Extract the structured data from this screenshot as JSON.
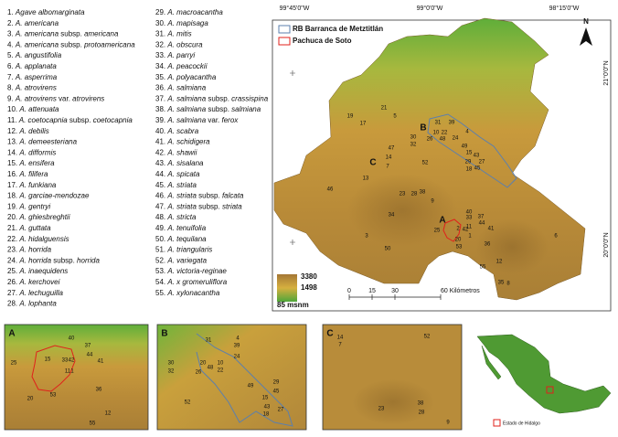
{
  "species": [
    "1. Agave albomarginata",
    "2. A. americana",
    "3. A. americana subsp. americana",
    "4. A. americana subsp. protoamericana",
    "5. A. angustifolia",
    "6. A. applanata",
    "7. A. asperrima",
    "8. A. atrovirens",
    "9. A. atrovirens var. atrovirens",
    "10. A. attenuata",
    "11. A. coetocapnia subsp. coetocapnia",
    "12. A. debilis",
    "13. A. demeesteriana",
    "14. A. difformis",
    "15. A. ensifera",
    "16. A. filifera",
    "17. A. funkiana",
    "18. A. garciae-mendozae",
    "19. A. gentryi",
    "20. A. ghiesbreghtii",
    "21. A. guttata",
    "22. A. hidalguensis",
    "23. A. horrida",
    "24. A. horrida subsp. horrida",
    "25. A. inaequidens",
    "26. A. kerchovei",
    "27. A. lechuguilla",
    "28. A. lophanta",
    "29. A. macroacantha",
    "30. A. mapisaga",
    "31. A. mitis",
    "32. A. obscura",
    "33. A. parryi",
    "34. A. peacockii",
    "35. A. polyacantha",
    "36. A. salmiana",
    "37. A. salmiana subsp. crassispina",
    "38. A. salmiana subsp. salmiana",
    "39. A. salmiana var. ferox",
    "40. A. scabra",
    "41. A. schidigera",
    "42. A. shawii",
    "43. A. sisalana",
    "44. A. spicata",
    "45. A. striata",
    "46. A. striata subsp. falcata",
    "47. A. striata subsp. striata",
    "48. A. stricta",
    "49. A. tenuifolia",
    "50. A. tequilana",
    "51. A. triangularis",
    "52. A. variegata",
    "53. A. victoria-reginae",
    "54. A. x gromeruliflora",
    "55. A. xylonacantha"
  ],
  "coordinates": {
    "top": [
      "99°45'0\"W",
      "99°0'0\"W",
      "98°15'0\"W"
    ],
    "right": [
      "21°0'0\"N",
      "20°0'0\"N"
    ]
  },
  "legend": {
    "items": [
      "RB Barranca de Metztitlán",
      "Pachuca de Soto"
    ],
    "elevation": [
      "3380",
      "1498",
      "85 msnm"
    ]
  },
  "scale": [
    "0",
    "15",
    "30",
    "60 Kilómetros"
  ],
  "map_labels": {
    "zones": [
      "B",
      "C",
      "A"
    ],
    "sites": [
      "19",
      "17",
      "21",
      "5",
      "31",
      "39",
      "10",
      "22",
      "48",
      "26",
      "30",
      "32",
      "24",
      "4",
      "49",
      "15",
      "43",
      "29",
      "27",
      "18",
      "45",
      "47",
      "14",
      "7",
      "52",
      "46",
      "13",
      "23",
      "28",
      "38",
      "9",
      "34",
      "3",
      "50",
      "25",
      "40",
      "33",
      "37",
      "44",
      "41",
      "11",
      "2",
      "42",
      "1",
      "20",
      "53",
      "36",
      "6",
      "12",
      "55",
      "35",
      "8"
    ]
  },
  "insets": [
    {
      "title": "A",
      "sites": [
        "40",
        "37",
        "44",
        "41",
        "25",
        "15",
        "33",
        "42",
        "11",
        "1",
        "20",
        "53",
        "36",
        "12",
        "55"
      ]
    },
    {
      "title": "B",
      "sites": [
        "31",
        "4",
        "39",
        "30",
        "32",
        "20",
        "26",
        "48",
        "10",
        "22",
        "24",
        "52",
        "49",
        "15",
        "43",
        "29",
        "45",
        "18",
        "27"
      ]
    },
    {
      "title": "C",
      "sites": [
        "14",
        "7",
        "52",
        "23",
        "28",
        "38",
        "9"
      ]
    }
  ],
  "locator": {
    "legend": "Estado de Hidalgo"
  }
}
